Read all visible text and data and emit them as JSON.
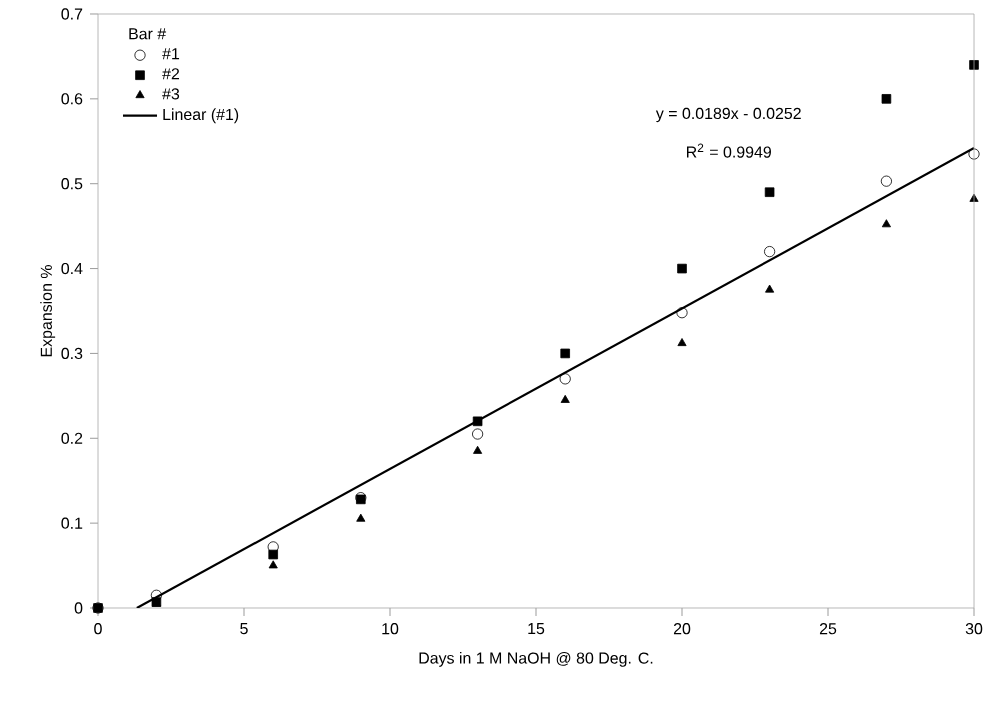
{
  "chart_data": {
    "type": "scatter",
    "xlabel": "Days in 1 M NaOH @ 80 Deg. C.",
    "ylabel": "Expansion %",
    "legend_title": "Bar #",
    "legend": "top left",
    "grid": false,
    "xlim": [
      0,
      30
    ],
    "xticks": [
      0,
      5,
      10,
      15,
      20,
      25,
      30
    ],
    "ylim": [
      0,
      0.7
    ],
    "yticks": [
      0,
      0.1,
      0.2,
      0.3,
      0.4,
      0.5,
      0.6,
      0.7
    ],
    "annotations": [
      "y = 0.0189x - 0.0252",
      "R$^{2}$ = 0.9949"
    ],
    "series": [
      {
        "name": "#1",
        "marker": "circle",
        "color": "#000000",
        "x": [
          0,
          2,
          6,
          9,
          13,
          16,
          20,
          23,
          27,
          30
        ],
        "values": [
          0,
          0.015,
          0.072,
          0.13,
          0.205,
          0.27,
          0.348,
          0.42,
          0.503,
          0.535
        ]
      },
      {
        "name": "#2",
        "marker": "square",
        "color": "#000000",
        "x": [
          0,
          2,
          6,
          9,
          13,
          16,
          20,
          23,
          27,
          30
        ],
        "values": [
          0,
          0.007,
          0.063,
          0.128,
          0.22,
          0.3,
          0.4,
          0.49,
          0.6,
          0.64
        ]
      },
      {
        "name": "#3",
        "marker": "triangle",
        "color": "#000000",
        "x": [
          2,
          6,
          9,
          13,
          16,
          20,
          23,
          27,
          30
        ],
        "values": [
          0.005,
          0.05,
          0.105,
          0.185,
          0.245,
          0.312,
          0.375,
          0.452,
          0.482
        ]
      },
      {
        "name": "Linear (#1)",
        "type": "line",
        "marker": "none",
        "line_style": "solid",
        "color": "#000000",
        "x": [
          1.33,
          30
        ],
        "values": [
          0,
          0.542
        ]
      }
    ]
  }
}
